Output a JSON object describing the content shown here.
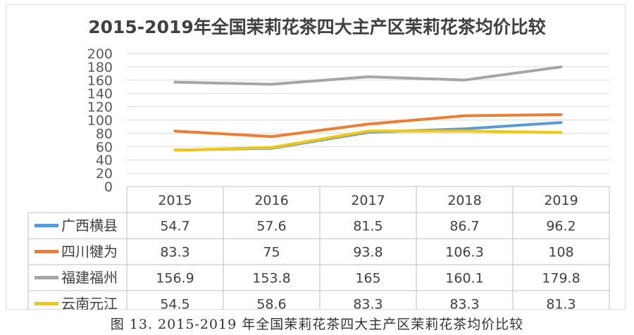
{
  "caption": "图 13. 2015-2019 年全国茉莉花茶四大主产区茉莉花茶均价比较",
  "chart_data": {
    "type": "line",
    "title": "2015-2019年全国茉莉花茶四大主产区茉莉花茶均价比较",
    "categories": [
      "2015",
      "2016",
      "2017",
      "2018",
      "2019"
    ],
    "y_ticks": [
      "0",
      "20",
      "40",
      "60",
      "80",
      "100",
      "120",
      "140",
      "160",
      "180",
      "200"
    ],
    "ylim": [
      0,
      200
    ],
    "grid": true,
    "legend": "data-table",
    "series": [
      {
        "name": "广西横县",
        "color": "#5b9bd5",
        "values": [
          54.7,
          57.6,
          81.5,
          86.7,
          96.2
        ],
        "labels": [
          "54.7",
          "57.6",
          "81.5",
          "86.7",
          "96.2"
        ]
      },
      {
        "name": "四川犍为",
        "color": "#ed7d31",
        "values": [
          83.3,
          75,
          93.8,
          106.3,
          108
        ],
        "labels": [
          "83.3",
          "75",
          "93.8",
          "106.3",
          "108"
        ]
      },
      {
        "name": "福建福州",
        "color": "#a5a5a5",
        "values": [
          156.9,
          153.8,
          165,
          160.1,
          179.8
        ],
        "labels": [
          "156.9",
          "153.8",
          "165",
          "160.1",
          "179.8"
        ]
      },
      {
        "name": "云南元江",
        "color": "#f2c80f",
        "values": [
          54.5,
          58.6,
          83.3,
          83.3,
          81.3
        ],
        "labels": [
          "54.5",
          "58.6",
          "83.3",
          "83.3",
          "81.3"
        ]
      }
    ]
  }
}
